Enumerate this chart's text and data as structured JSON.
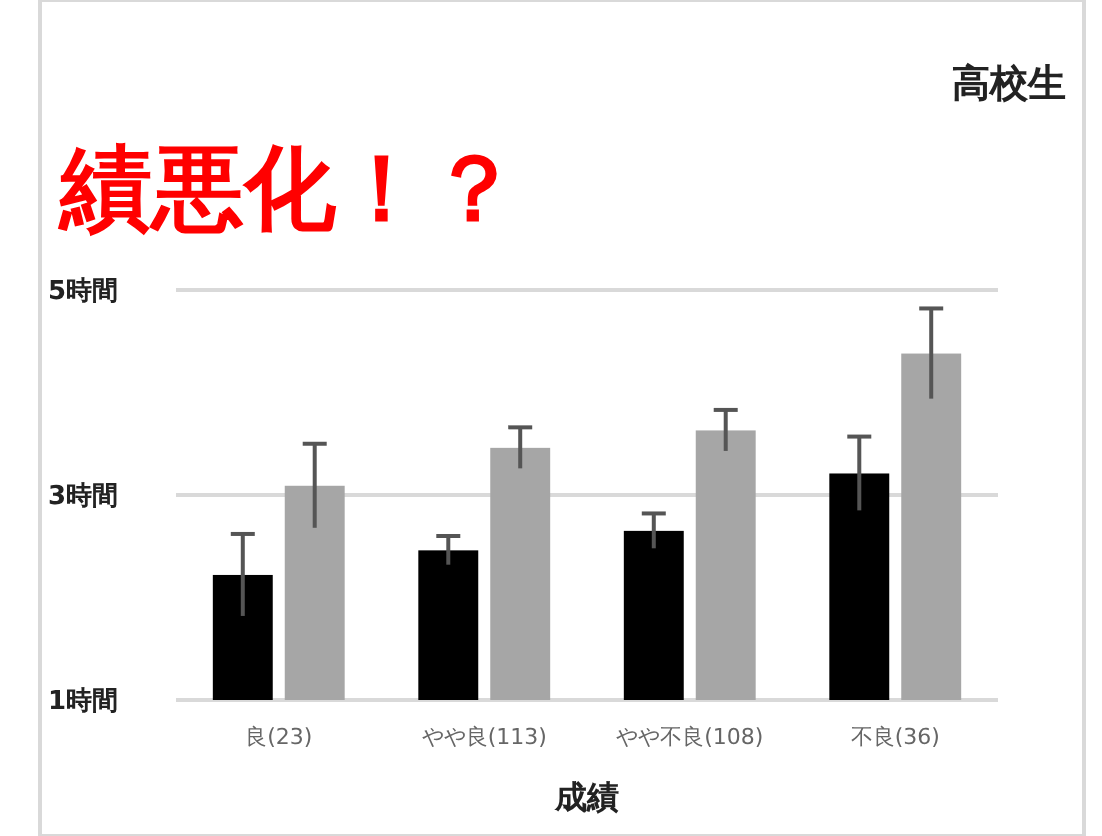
{
  "chart_data": {
    "type": "bar",
    "title": "高校生",
    "xlabel": "成績",
    "categories": [
      "良(23)",
      "やや良(113)",
      "やや不良(108)",
      "不良(36)"
    ],
    "series": [
      {
        "color": "#000000",
        "values": [
          2.22,
          2.46,
          2.65,
          3.21
        ],
        "errors": [
          0.4,
          0.14,
          0.17,
          0.36
        ]
      },
      {
        "color": "#a6a6a6",
        "values": [
          3.09,
          3.46,
          3.63,
          4.38
        ],
        "errors": [
          0.41,
          0.2,
          0.2,
          0.44
        ]
      }
    ],
    "ylim": [
      1,
      5
    ],
    "yticks": [
      {
        "value": 1,
        "label": "1時間"
      },
      {
        "value": 3,
        "label": "3時間"
      },
      {
        "value": 5,
        "label": "5時間"
      }
    ],
    "grid": "y",
    "annotations": [
      "績悪化！？"
    ]
  }
}
